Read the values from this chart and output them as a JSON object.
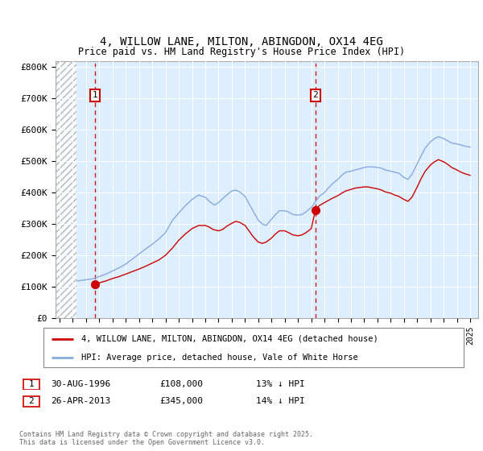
{
  "title": "4, WILLOW LANE, MILTON, ABINGDON, OX14 4EG",
  "subtitle": "Price paid vs. HM Land Registry's House Price Index (HPI)",
  "ylim": [
    0,
    820000
  ],
  "yticks": [
    0,
    100000,
    200000,
    300000,
    400000,
    500000,
    600000,
    700000,
    800000
  ],
  "ytick_labels": [
    "£0",
    "£100K",
    "£200K",
    "£300K",
    "£400K",
    "£500K",
    "£600K",
    "£700K",
    "£800K"
  ],
  "sale1_date": 1996.66,
  "sale1_price": 108000,
  "sale2_date": 2013.32,
  "sale2_price": 345000,
  "plot_bg_color": "#ddeeff",
  "hatch_end_year": 1995.3,
  "xlim_start": 1993.7,
  "xlim_end": 2025.6,
  "red_line_color": "#cc0000",
  "blue_line_color": "#88aadd",
  "marker_color": "#cc0000",
  "legend_red_label": "4, WILLOW LANE, MILTON, ABINGDON, OX14 4EG (detached house)",
  "legend_blue_label": "HPI: Average price, detached house, Vale of White Horse",
  "note1_date": "30-AUG-1996",
  "note1_price": "£108,000",
  "note1_hpi": "13% ↓ HPI",
  "note2_date": "26-APR-2013",
  "note2_price": "£345,000",
  "note2_hpi": "14% ↓ HPI",
  "footer": "Contains HM Land Registry data © Crown copyright and database right 2025.\nThis data is licensed under the Open Government Licence v3.0.",
  "hpi_years": [
    1995.3,
    1995.5,
    1996.0,
    1996.5,
    1997.0,
    1997.5,
    1998.0,
    1998.5,
    1999.0,
    1999.5,
    2000.0,
    2000.5,
    2001.0,
    2001.5,
    2002.0,
    2002.5,
    2003.0,
    2003.5,
    2004.0,
    2004.5,
    2005.0,
    2005.3,
    2005.7,
    2006.0,
    2006.5,
    2007.0,
    2007.3,
    2007.6,
    2008.0,
    2008.3,
    2008.6,
    2009.0,
    2009.3,
    2009.6,
    2010.0,
    2010.3,
    2010.6,
    2011.0,
    2011.3,
    2011.6,
    2012.0,
    2012.3,
    2012.6,
    2013.0,
    2013.3,
    2013.6,
    2014.0,
    2014.3,
    2014.6,
    2015.0,
    2015.3,
    2015.6,
    2016.0,
    2016.3,
    2016.6,
    2017.0,
    2017.3,
    2017.6,
    2018.0,
    2018.3,
    2018.6,
    2019.0,
    2019.3,
    2019.6,
    2020.0,
    2020.3,
    2020.6,
    2021.0,
    2021.3,
    2021.6,
    2022.0,
    2022.3,
    2022.6,
    2023.0,
    2023.3,
    2023.6,
    2024.0,
    2024.3,
    2024.6,
    2025.0
  ],
  "hpi_values": [
    118000,
    119000,
    122000,
    125000,
    132000,
    140000,
    150000,
    160000,
    172000,
    188000,
    204000,
    220000,
    235000,
    252000,
    272000,
    310000,
    335000,
    358000,
    378000,
    392000,
    385000,
    372000,
    360000,
    368000,
    388000,
    405000,
    408000,
    402000,
    388000,
    365000,
    342000,
    312000,
    300000,
    295000,
    315000,
    330000,
    342000,
    342000,
    338000,
    330000,
    328000,
    330000,
    338000,
    352000,
    370000,
    388000,
    400000,
    415000,
    428000,
    442000,
    455000,
    465000,
    468000,
    472000,
    475000,
    480000,
    482000,
    482000,
    480000,
    478000,
    472000,
    468000,
    465000,
    462000,
    448000,
    442000,
    458000,
    492000,
    518000,
    542000,
    562000,
    572000,
    578000,
    572000,
    565000,
    558000,
    555000,
    552000,
    548000,
    545000
  ],
  "red_years": [
    1996.66,
    1997.0,
    1997.5,
    1998.0,
    1998.5,
    1999.0,
    1999.5,
    2000.0,
    2000.5,
    2001.0,
    2001.5,
    2002.0,
    2002.5,
    2003.0,
    2003.5,
    2004.0,
    2004.5,
    2005.0,
    2005.3,
    2005.6,
    2006.0,
    2006.3,
    2006.6,
    2007.0,
    2007.3,
    2007.6,
    2008.0,
    2008.3,
    2008.6,
    2009.0,
    2009.3,
    2009.6,
    2010.0,
    2010.3,
    2010.6,
    2011.0,
    2011.3,
    2011.6,
    2012.0,
    2012.3,
    2012.6,
    2013.0,
    2013.32,
    2013.6,
    2014.0,
    2014.3,
    2014.6,
    2015.0,
    2015.3,
    2015.6,
    2016.0,
    2016.3,
    2016.6,
    2017.0,
    2017.3,
    2017.6,
    2018.0,
    2018.3,
    2018.6,
    2019.0,
    2019.3,
    2019.6,
    2020.0,
    2020.3,
    2020.6,
    2021.0,
    2021.3,
    2021.6,
    2022.0,
    2022.3,
    2022.6,
    2023.0,
    2023.3,
    2023.6,
    2024.0,
    2024.3,
    2024.6,
    2025.0
  ],
  "red_values": [
    108000,
    112000,
    118000,
    126000,
    132000,
    140000,
    148000,
    156000,
    165000,
    175000,
    185000,
    200000,
    222000,
    248000,
    268000,
    285000,
    295000,
    295000,
    290000,
    282000,
    278000,
    282000,
    292000,
    302000,
    308000,
    305000,
    295000,
    278000,
    260000,
    242000,
    238000,
    242000,
    255000,
    268000,
    278000,
    278000,
    272000,
    265000,
    262000,
    265000,
    272000,
    285000,
    345000,
    358000,
    368000,
    375000,
    382000,
    390000,
    398000,
    405000,
    410000,
    414000,
    416000,
    418000,
    418000,
    415000,
    412000,
    408000,
    402000,
    398000,
    392000,
    388000,
    378000,
    372000,
    385000,
    418000,
    445000,
    468000,
    488000,
    498000,
    505000,
    498000,
    490000,
    480000,
    472000,
    465000,
    460000,
    455000
  ]
}
